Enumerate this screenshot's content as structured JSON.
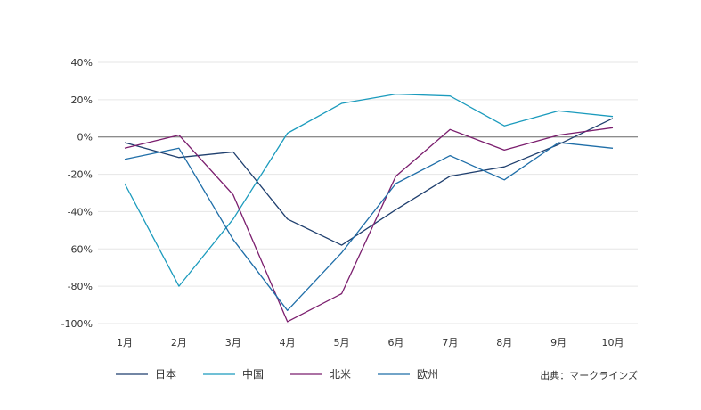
{
  "chart_data": {
    "type": "line",
    "title": "",
    "xlabel": "",
    "ylabel": "",
    "categories": [
      "1月",
      "2月",
      "3月",
      "4月",
      "5月",
      "6月",
      "7月",
      "8月",
      "9月",
      "10月"
    ],
    "y_ticks": [
      40,
      20,
      0,
      -20,
      -40,
      -60,
      -80,
      -100
    ],
    "y_tick_labels": [
      "40%",
      "20%",
      "0%",
      "-20%",
      "-40%",
      "-60%",
      "-80%",
      "-100%"
    ],
    "ylim": [
      -100,
      40
    ],
    "grid": true,
    "legend_position": "bottom-left",
    "series": [
      {
        "name": "日本",
        "color": "#1f3f6e",
        "values": [
          -3,
          -11,
          -8,
          -44,
          -58,
          -39,
          -21,
          -16,
          -4,
          10
        ]
      },
      {
        "name": "中国",
        "color": "#1b9bbd",
        "values": [
          -25,
          -80,
          -44,
          2,
          18,
          23,
          22,
          6,
          14,
          11
        ]
      },
      {
        "name": "北米",
        "color": "#7b1e6e",
        "values": [
          -6,
          1,
          -31,
          -99,
          -84,
          -21,
          4,
          -7,
          1,
          5
        ]
      },
      {
        "name": "欧州",
        "color": "#1f6ea8",
        "values": [
          -12,
          -6,
          -55,
          -93,
          -62,
          -25,
          -10,
          -23,
          -3,
          -6
        ]
      }
    ],
    "source": "出典：マークラインズ"
  }
}
